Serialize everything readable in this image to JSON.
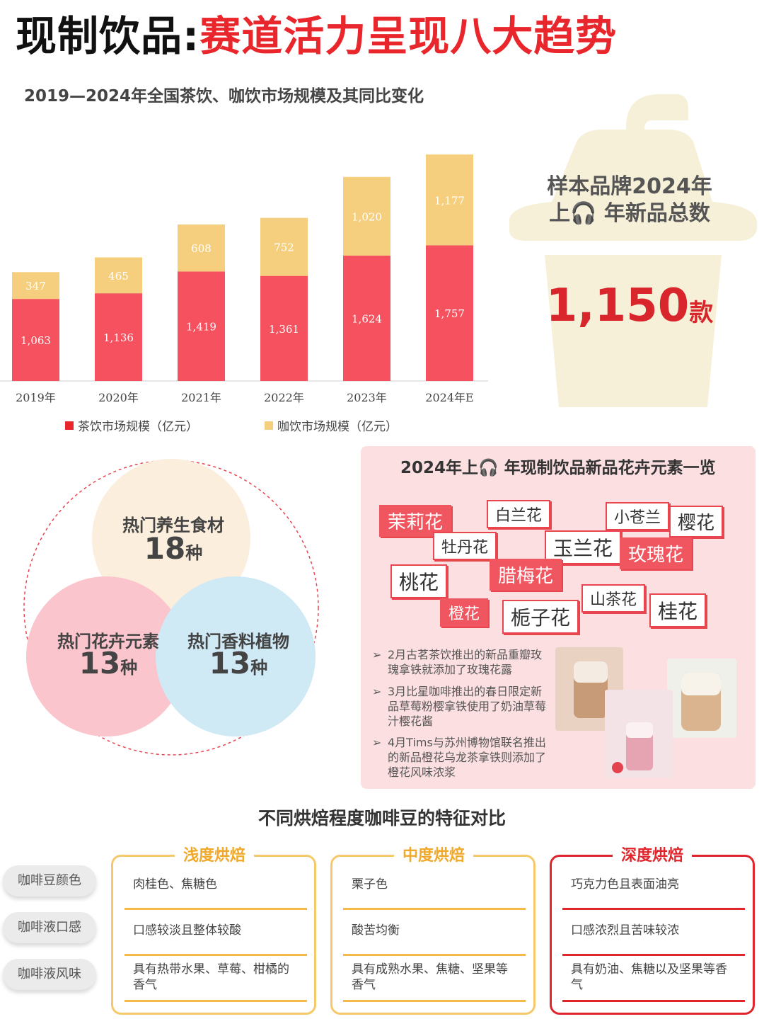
{
  "header": {
    "title_part1": "现制饮品:",
    "title_part2": "赛道活力呈现八大趋势"
  },
  "chart_data": {
    "type": "bar",
    "title": "2019—2024年全国茶饮、咖饮市场规模及其同比变化",
    "categories": [
      "2019年",
      "2020年",
      "2021年",
      "2022年",
      "2023年",
      "2024年E"
    ],
    "series": [
      {
        "name": "茶饮市场规模（亿元）",
        "color": "#f5515f",
        "values": [
          1063,
          1136,
          1419,
          1361,
          1624,
          1757
        ],
        "labels": [
          "1,063",
          "1,136",
          "1,419",
          "1,361",
          "1,624",
          "1,757"
        ]
      },
      {
        "name": "咖饮市场规模（亿元）",
        "color": "#f5cf7d",
        "values": [
          347,
          465,
          608,
          752,
          1020,
          1177
        ],
        "labels": [
          "347",
          "465",
          "608",
          "752",
          "1,020",
          "1,177"
        ]
      }
    ],
    "stacked": true,
    "ylim": [
      0,
      3000
    ],
    "grid": false,
    "legend": "bottom"
  },
  "cup": {
    "label_line1": "样本品牌2024年",
    "label_line2": "上🎧 年新品总数",
    "value": "1,150",
    "unit": "款"
  },
  "venn": {
    "health": {
      "label": "热门养生食材",
      "count": "18",
      "unit": "种"
    },
    "flower": {
      "label": "热门花卉元素",
      "count": "13",
      "unit": "种"
    },
    "spice": {
      "label": "热门香料植物",
      "count": "13",
      "unit": "种"
    }
  },
  "flowers": {
    "title": "2024年上🎧 年现制饮品新品花卉元素一览",
    "tags": [
      "茉莉花",
      "白兰花",
      "小苍兰",
      "樱花",
      "牡丹花",
      "玉兰花",
      "玫瑰花",
      "桃花",
      "腊梅花",
      "山茶花",
      "桂花",
      "橙花",
      "栀子花"
    ],
    "notes": [
      "2月古茗茶饮推出的新品重瓣玫瑰拿铁就添加了玫瑰花露",
      "3月比星咖啡推出的春日限定新品草莓粉樱拿铁使用了奶油草莓汁樱花酱",
      "4月Tims与苏州博物馆联名推出的新品橙花乌龙茶拿铁则添加了橙花风味浓浆"
    ],
    "arrow_glyph": "➢"
  },
  "roast": {
    "title": "不同烘焙程度咖啡豆的特征对比",
    "rows": [
      "咖啡豆颜色",
      "咖啡液口感",
      "咖啡液风味"
    ],
    "columns": [
      {
        "name": "浅度烘焙",
        "cells": [
          "肉桂色、焦糖色",
          "口感较淡且整体较酸",
          "具有热带水果、草莓、柑橘的香气"
        ]
      },
      {
        "name": "中度烘焙",
        "cells": [
          "栗子色",
          "酸苦均衡",
          "具有成熟水果、焦糖、坚果等香气"
        ]
      },
      {
        "name": "深度烘焙",
        "cells": [
          "巧克力色且表面油亮",
          "口感浓烈且苦味较浓",
          "具有奶油、焦糖以及坚果等香气"
        ]
      }
    ]
  }
}
